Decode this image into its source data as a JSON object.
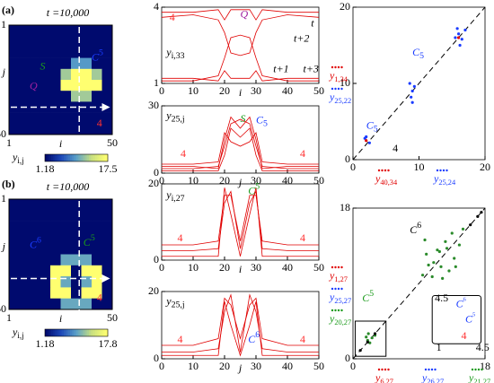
{
  "chart_data": [
    {
      "type": "heatmap",
      "panel_label": "(a)",
      "title": "t =10,000",
      "xlabel": "i",
      "ylabel": "j",
      "xlim": [
        1,
        50
      ],
      "ylim": [
        1,
        50
      ],
      "xticks": [
        1,
        50
      ],
      "yticks": [
        1,
        50
      ],
      "colorbar": {
        "label": {
          "base": "y",
          "sub": "i,j"
        },
        "ticks": [
          1.18,
          17.5
        ]
      },
      "z": [
        [
          1.18,
          1.18,
          1.18,
          1.18,
          1.18,
          1.18,
          1.18,
          1.18,
          1.18,
          1.18
        ],
        [
          1.18,
          1.18,
          1.18,
          1.18,
          1.18,
          1.18,
          1.18,
          1.18,
          1.18,
          1.18
        ],
        [
          1.18,
          1.18,
          1.18,
          1.18,
          1.18,
          1.18,
          1.18,
          1.18,
          1.18,
          1.18
        ],
        [
          1.18,
          1.18,
          1.18,
          1.18,
          1.18,
          1.18,
          9,
          9,
          1.18,
          1.18
        ],
        [
          1.18,
          1.18,
          1.18,
          1.18,
          1.18,
          12,
          17.5,
          17.5,
          12,
          1.18
        ],
        [
          1.18,
          1.18,
          1.18,
          1.18,
          1.18,
          17.5,
          17.5,
          17.5,
          17.5,
          1.18
        ],
        [
          1.18,
          1.18,
          1.18,
          1.18,
          1.18,
          1.18,
          12,
          12,
          1.18,
          1.18
        ],
        [
          1.18,
          1.18,
          1.18,
          1.18,
          1.18,
          1.18,
          1.18,
          1.18,
          1.18,
          1.18
        ],
        [
          1.18,
          1.18,
          1.18,
          1.18,
          1.18,
          1.18,
          1.18,
          1.18,
          1.18,
          1.18
        ],
        [
          1.18,
          1.18,
          1.18,
          1.18,
          1.18,
          1.18,
          1.18,
          1.18,
          1.18,
          1.18
        ]
      ],
      "annotations": [
        {
          "text": "S",
          "color": "#1a9a1a"
        },
        {
          "text": "C",
          "sup": "5",
          "color": "#1a3cff"
        },
        {
          "text": "Q",
          "color": "#a020a0"
        },
        {
          "text": "4",
          "color": "#ff3030"
        }
      ]
    },
    {
      "type": "line",
      "xlim": [
        0,
        50
      ],
      "ylim": [
        1,
        4
      ],
      "xticks": [
        0,
        10,
        20,
        30,
        40,
        50
      ],
      "yticks": [
        1,
        4
      ],
      "xlabel": "i",
      "x": [
        0,
        10,
        18,
        20,
        22,
        25,
        28,
        30,
        32,
        40,
        50
      ],
      "series": [
        {
          "color": "#e00000",
          "values": [
            3.8,
            3.8,
            3.9,
            3.5,
            3.9,
            3.9,
            3.9,
            3.5,
            3.9,
            3.8,
            3.8
          ]
        },
        {
          "color": "#e00000",
          "values": [
            3.6,
            3.7,
            3.5,
            3.0,
            2.2,
            2.1,
            2.2,
            3.0,
            3.5,
            3.7,
            3.6
          ]
        },
        {
          "color": "#e00000",
          "values": [
            1.2,
            1.2,
            1.1,
            1.5,
            1.2,
            1.2,
            1.2,
            1.5,
            1.1,
            1.2,
            1.2
          ]
        },
        {
          "color": "#e00000",
          "values": [
            1.1,
            1.1,
            1.3,
            2.0,
            2.8,
            2.9,
            2.8,
            2.0,
            1.3,
            1.1,
            1.1
          ]
        }
      ],
      "annotations": [
        {
          "text": "4",
          "color": "#ff3030"
        },
        {
          "text": "Q",
          "color": "#a020a0"
        },
        {
          "base": "y",
          "sub": "i,33",
          "color": "#000"
        },
        {
          "text": "t",
          "color": "#000"
        },
        {
          "text": "t+2",
          "color": "#000"
        },
        {
          "text": "t+1",
          "color": "#000"
        },
        {
          "text": "t+3",
          "color": "#000"
        }
      ]
    },
    {
      "type": "line",
      "xlim": [
        0,
        50
      ],
      "ylim": [
        0,
        30
      ],
      "xticks": [
        0,
        10,
        20,
        30,
        40,
        50
      ],
      "yticks": [
        0,
        30
      ],
      "xlabel": "j",
      "x": [
        0,
        10,
        18,
        20,
        22,
        25,
        28,
        30,
        32,
        40,
        50
      ],
      "series": [
        {
          "color": "#e00000",
          "values": [
            2,
            2,
            3,
            12,
            22,
            24,
            22,
            12,
            3,
            2,
            2
          ]
        },
        {
          "color": "#e00000",
          "values": [
            4,
            4,
            5,
            18,
            14,
            12,
            14,
            18,
            5,
            4,
            4
          ]
        },
        {
          "color": "#e00000",
          "values": [
            1,
            1,
            1,
            8,
            20,
            16,
            20,
            8,
            1,
            1,
            1
          ]
        },
        {
          "color": "#e00000",
          "values": [
            3,
            3,
            2,
            15,
            25,
            20,
            25,
            15,
            2,
            3,
            3
          ]
        }
      ],
      "annotations": [
        {
          "base": "y",
          "sub": "25,j",
          "color": "#000"
        },
        {
          "text": "S",
          "color": "#1a9a1a"
        },
        {
          "text": "C",
          "sub": "5",
          "color": "#1a3cff"
        },
        {
          "text": "4",
          "color": "#ff3030"
        },
        {
          "text": "4",
          "color": "#ff3030"
        }
      ]
    },
    {
      "type": "scatter",
      "xlim": [
        0,
        20
      ],
      "ylim": [
        0,
        20
      ],
      "xticks": [
        0,
        10,
        20
      ],
      "yticks": [
        0,
        10,
        20
      ],
      "ylabels": [
        {
          "base": "y",
          "sub": "1,34",
          "color": "#e00000"
        },
        {
          "base": "y",
          "sub": "25,22",
          "color": "#1a3cff"
        }
      ],
      "xlabels": [
        {
          "base": "y",
          "sub": "40,34",
          "color": "#e00000"
        },
        {
          "base": "y",
          "sub": "25,24",
          "color": "#1a3cff"
        }
      ],
      "series": [
        {
          "color": "#1a3cff",
          "x": [
            16,
            16.5,
            15.5,
            17,
            16.2,
            15.8,
            9,
            8.8,
            9.3,
            8.6,
            9,
            2,
            2.5,
            1.8
          ],
          "values": [
            16.5,
            15.8,
            16,
            17,
            15,
            17.2,
            9,
            8.2,
            9.6,
            10,
            7.5,
            3,
            2.2,
            2.8
          ]
        },
        {
          "color": "#e00000",
          "x": [
            2,
            16
          ],
          "values": [
            2.5,
            16
          ]
        }
      ],
      "annotations": [
        {
          "text": "C",
          "sub": "5",
          "color": "#1a3cff"
        },
        {
          "text": "C",
          "sub": "5",
          "color": "#1a3cff"
        },
        {
          "text": "4",
          "color": "#000"
        }
      ]
    },
    {
      "type": "heatmap",
      "panel_label": "(b)",
      "title": "t =10,000",
      "xlabel": "i",
      "ylabel": "j",
      "xlim": [
        1,
        50
      ],
      "ylim": [
        1,
        50
      ],
      "xticks": [
        1,
        50
      ],
      "yticks": [
        1,
        50
      ],
      "colorbar": {
        "label": {
          "base": "y",
          "sub": "i,j"
        },
        "ticks": [
          1.18,
          17.8
        ]
      },
      "z": [
        [
          1.18,
          1.18,
          1.18,
          1.18,
          1.18,
          1.18,
          1.18,
          1.18,
          1.18,
          1.18
        ],
        [
          1.18,
          1.18,
          1.18,
          1.18,
          1.18,
          1.18,
          1.18,
          1.18,
          1.18,
          1.18
        ],
        [
          1.18,
          1.18,
          1.18,
          1.18,
          1.18,
          1.18,
          1.18,
          1.18,
          1.18,
          1.18
        ],
        [
          1.18,
          1.18,
          1.18,
          1.18,
          1.18,
          1.18,
          1.18,
          1.18,
          1.18,
          1.18
        ],
        [
          1.18,
          1.18,
          1.18,
          1.18,
          1.18,
          1.18,
          1.18,
          1.18,
          1.18,
          1.18
        ],
        [
          1.18,
          1.18,
          1.18,
          1.18,
          1.18,
          10,
          10,
          10,
          1.18,
          1.18
        ],
        [
          1.18,
          1.18,
          1.18,
          1.18,
          17.8,
          17.8,
          1.18,
          17.8,
          17.8,
          1.18
        ],
        [
          1.18,
          1.18,
          1.18,
          1.18,
          17.8,
          10,
          1.18,
          10,
          17.8,
          1.18
        ],
        [
          1.18,
          1.18,
          1.18,
          1.18,
          17.8,
          17.8,
          1.18,
          17.8,
          17.8,
          1.18
        ],
        [
          1.18,
          1.18,
          1.18,
          1.18,
          1.18,
          10,
          10,
          10,
          1.18,
          1.18
        ]
      ],
      "annotations": [
        {
          "text": "C",
          "sup": "6",
          "color": "#1a3cff"
        },
        {
          "text": "C",
          "sup": "5",
          "color": "#1a9a1a"
        },
        {
          "text": "4",
          "color": "#ff3030"
        }
      ]
    },
    {
      "type": "line",
      "xlim": [
        0,
        50
      ],
      "ylim": [
        0,
        20
      ],
      "xticks": [
        0,
        10,
        20,
        30,
        40,
        50
      ],
      "yticks": [
        0,
        20
      ],
      "xlabel": "i",
      "x": [
        0,
        10,
        18,
        20,
        22,
        25,
        28,
        30,
        32,
        40,
        50
      ],
      "series": [
        {
          "color": "#e00000",
          "values": [
            4,
            4,
            5,
            17,
            17,
            5,
            17,
            17,
            5,
            4,
            4
          ]
        },
        {
          "color": "#e00000",
          "values": [
            2.5,
            2.5,
            3,
            15,
            18,
            3,
            15,
            18,
            3,
            2.5,
            2.5
          ]
        },
        {
          "color": "#e00000",
          "values": [
            1,
            1,
            1,
            19,
            12,
            1,
            12,
            19,
            1,
            1,
            1
          ]
        }
      ],
      "annotations": [
        {
          "base": "y",
          "sub": "i,27",
          "color": "#000"
        },
        {
          "text": "C",
          "sup": "5",
          "color": "#1a9a1a"
        },
        {
          "text": "4",
          "color": "#ff3030"
        },
        {
          "text": "4",
          "color": "#ff3030"
        }
      ]
    },
    {
      "type": "line",
      "xlim": [
        0,
        50
      ],
      "ylim": [
        0,
        20
      ],
      "xticks": [
        0,
        10,
        20,
        30,
        40,
        50
      ],
      "yticks": [
        0,
        20
      ],
      "xlabel": "j",
      "x": [
        0,
        10,
        18,
        20,
        22,
        25,
        28,
        30,
        32,
        40,
        50
      ],
      "series": [
        {
          "color": "#e00000",
          "values": [
            4,
            4,
            6,
            18,
            16,
            6,
            16,
            18,
            6,
            4,
            4
          ]
        },
        {
          "color": "#e00000",
          "values": [
            2,
            2,
            3,
            14,
            19,
            2,
            19,
            14,
            3,
            2,
            2
          ]
        },
        {
          "color": "#e00000",
          "values": [
            1,
            1,
            1,
            17,
            10,
            1,
            10,
            17,
            1,
            1,
            1
          ]
        }
      ],
      "annotations": [
        {
          "base": "y",
          "sub": "25,j",
          "color": "#000"
        },
        {
          "text": "C",
          "sup": "6",
          "color": "#1a3cff"
        },
        {
          "text": "4",
          "color": "#ff3030"
        },
        {
          "text": "4",
          "color": "#ff3030"
        }
      ]
    },
    {
      "type": "scatter",
      "xlim": [
        0,
        18
      ],
      "ylim": [
        0,
        18
      ],
      "xticks": [
        0,
        18
      ],
      "yticks": [
        0,
        18
      ],
      "ylabels": [
        {
          "base": "y",
          "sub": "1,27",
          "color": "#e00000"
        },
        {
          "base": "y",
          "sub": "25,27",
          "color": "#1a3cff"
        },
        {
          "base": "y",
          "sub": "20,27",
          "color": "#1a9a1a"
        }
      ],
      "xlabels": [
        {
          "base": "y",
          "sub": "6,27",
          "color": "#e00000"
        },
        {
          "base": "y",
          "sub": "26,27",
          "color": "#1a3cff"
        },
        {
          "base": "y",
          "sub": "21,27",
          "color": "#1a9a1a"
        }
      ],
      "series": [
        {
          "color": "#2a8a2a",
          "x": [
            9.5,
            10,
            10.8,
            11.5,
            12,
            12.6,
            13.1,
            13.8,
            14.5,
            9.8,
            11,
            12.2,
            13.5,
            10.3,
            11.8,
            14,
            12.8,
            15,
            2,
            2.3,
            1.8,
            2.6,
            3,
            2.1
          ],
          "values": [
            10,
            12.5,
            9.8,
            13,
            11,
            14,
            10.5,
            12,
            13.6,
            14.2,
            11.5,
            9.6,
            15,
            11.2,
            12.8,
            11,
            13.2,
            15.5,
            2.2,
            1.9,
            2.6,
            2.5,
            2.8,
            3
          ]
        },
        {
          "color": "#000000",
          "x": [
            1,
            2,
            3,
            16,
            17,
            17.5
          ],
          "values": [
            1,
            2,
            3,
            16,
            17,
            17.5
          ]
        }
      ],
      "annotations": [
        {
          "text": "C",
          "sup": "6",
          "color": "#000"
        },
        {
          "text": "C",
          "sup": "5",
          "color": "#1a9a1a"
        },
        {
          "text": "4.5",
          "color": "#000"
        },
        {
          "text": "1",
          "color": "#000"
        },
        {
          "text": "4.5",
          "color": "#000"
        },
        {
          "text": "C",
          "sup": "6",
          "color": "#1a3cff"
        },
        {
          "text": "C",
          "sup": "5",
          "color": "#1a3cff"
        },
        {
          "text": "4",
          "color": "#ff3030"
        }
      ]
    }
  ]
}
